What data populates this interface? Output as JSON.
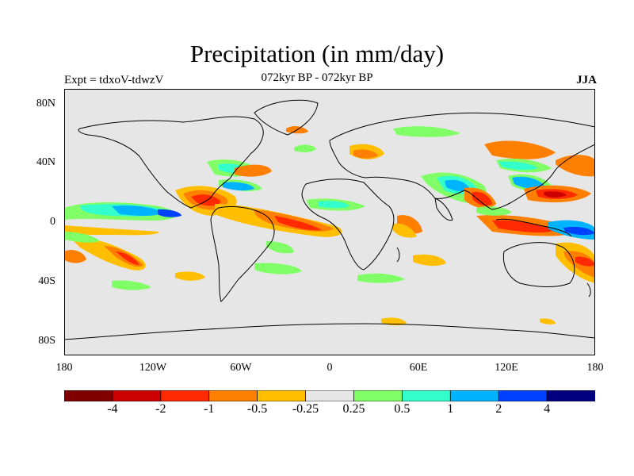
{
  "map": {
    "title": "Precipitation (in mm/day)",
    "subtitle_left": "Expt = tdxoV-tdwzV",
    "subtitle_center": "072kyr BP - 072kyr BP",
    "subtitle_right": "JJA",
    "lat_ticks": [
      "80N",
      "40N",
      "0",
      "40S",
      "80S"
    ],
    "lon_ticks": [
      "180",
      "120W",
      "60W",
      "0",
      "60E",
      "120E",
      "180"
    ],
    "background_color": "#e6e6e6",
    "coastline_color": "#000000"
  },
  "colorbar": {
    "colors": [
      "#800000",
      "#cc0000",
      "#ff2a00",
      "#ff7f00",
      "#ffbf00",
      "#e6e6e6",
      "#80ff66",
      "#33ffcc",
      "#00b3ff",
      "#0040ff",
      "#000080"
    ],
    "labels": [
      "-4",
      "-2",
      "-1",
      "-0.5",
      "-0.25",
      "0.25",
      "0.5",
      "1",
      "2",
      "4"
    ]
  }
}
